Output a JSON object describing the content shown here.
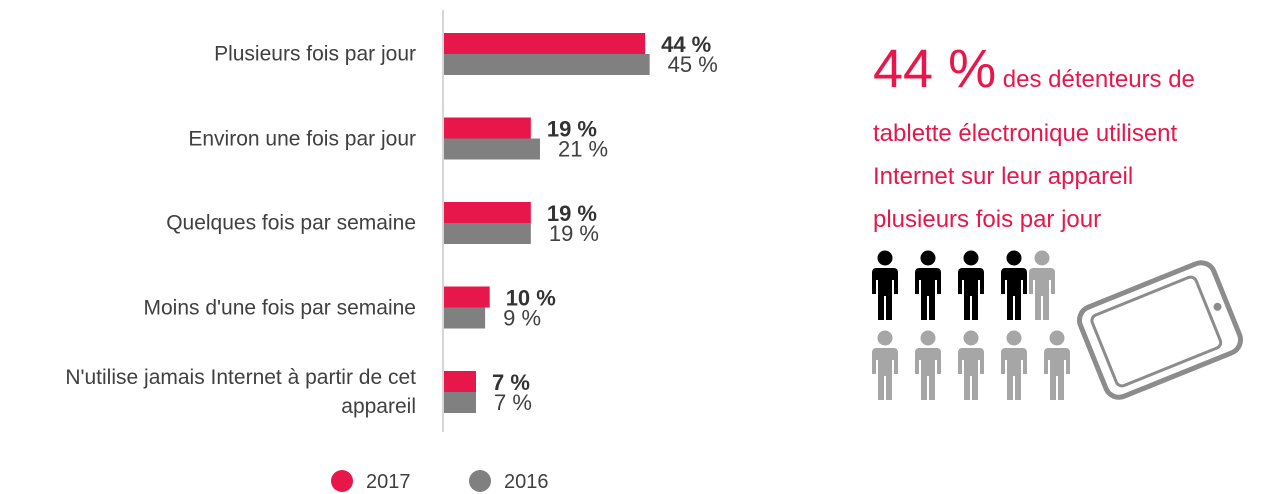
{
  "chart_data": {
    "type": "bar",
    "categories": [
      "Plusieurs fois par jour",
      "Environ une fois par jour",
      "Quelques fois par semaine",
      "Moins d'une fois par semaine",
      "N'utilise jamais Internet à partir de cet appareil"
    ],
    "series": [
      {
        "name": "2017",
        "color": "#e8174b",
        "values": [
          44,
          19,
          19,
          10,
          7
        ],
        "value_labels": [
          "44 %",
          "19 %",
          "19 %",
          "10 %",
          "7 %"
        ]
      },
      {
        "name": "2016",
        "color": "#808080",
        "values": [
          45,
          21,
          19,
          9,
          7
        ],
        "value_labels": [
          "45 %",
          "21 %",
          "19 %",
          "9 %",
          "7 %"
        ]
      }
    ],
    "orientation": "horizontal",
    "annotation": {
      "highlight": "44 %",
      "lines": [
        "des détenteurs de",
        "tablette électronique utilisent",
        "Internet sur leur appareil",
        "plusieurs fois par jour"
      ]
    }
  }
}
